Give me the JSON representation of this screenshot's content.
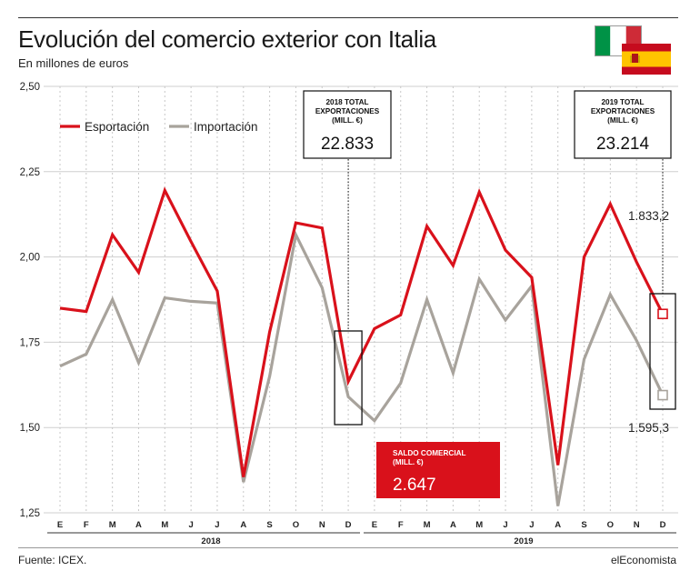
{
  "header": {
    "title": "Evolución del comercio exterior con Italia",
    "subtitle": "En millones de euros"
  },
  "footer": {
    "source": "Fuente: ICEX.",
    "brand": "elEconomista"
  },
  "colors": {
    "export": "#d9111b",
    "import": "#a8a39c",
    "flag_it_green": "#009246",
    "flag_it_red": "#ce2b37",
    "flag_es_red": "#c60b1e",
    "flag_es_yellow": "#ffc400"
  },
  "flags": [
    "italy-flag",
    "spain-flag"
  ],
  "chart_data": {
    "type": "line",
    "title": "Evolución del comercio exterior con Italia",
    "subtitle": "En millones de euros",
    "ylim": [
      1.25,
      2.5
    ],
    "yticks": [
      "2,50",
      "2,25",
      "2,00",
      "1,75",
      "1,50",
      "1,25"
    ],
    "ytick_values": [
      2.5,
      2.25,
      2.0,
      1.75,
      1.5,
      1.25
    ],
    "grid": true,
    "legend": "top-left",
    "categories": [
      "E",
      "F",
      "M",
      "A",
      "M",
      "J",
      "J",
      "A",
      "S",
      "O",
      "N",
      "D",
      "E",
      "F",
      "M",
      "A",
      "M",
      "J",
      "J",
      "A",
      "S",
      "O",
      "N",
      "D"
    ],
    "years": [
      {
        "label": "2018",
        "from": 0,
        "to": 11
      },
      {
        "label": "2019",
        "from": 12,
        "to": 23
      }
    ],
    "series": [
      {
        "name": "Esportación",
        "color": "#d9111b",
        "values": [
          1.85,
          1.84,
          2.065,
          1.955,
          2.195,
          2.045,
          1.9,
          1.355,
          1.78,
          2.1,
          2.085,
          1.635,
          1.79,
          1.83,
          2.09,
          1.975,
          2.19,
          2.02,
          1.94,
          1.39,
          2.0,
          2.155,
          1.985,
          1.833
        ]
      },
      {
        "name": "Importación",
        "color": "#a8a39c",
        "values": [
          1.68,
          1.715,
          1.875,
          1.69,
          1.88,
          1.87,
          1.865,
          1.34,
          1.65,
          2.065,
          1.91,
          1.59,
          1.52,
          1.63,
          1.875,
          1.66,
          1.935,
          1.815,
          1.915,
          1.27,
          1.7,
          1.89,
          1.755,
          1.595
        ]
      }
    ],
    "annotations": {
      "box_2018": {
        "heading": "2018 TOTAL EXPORTACIONES (MILL. €)",
        "lines": [
          "2018 TOTAL",
          "EXPORTACIONES",
          "(MILL. €)"
        ],
        "value": "22.833"
      },
      "box_2019": {
        "heading": "2019 TOTAL EXPORTACIONES (MILL. €)",
        "lines": [
          "2019 TOTAL",
          "EXPORTACIONES",
          "(MILL. €)"
        ],
        "value": "23.214"
      },
      "saldo": {
        "lines": [
          "SALDO COMERCIAL",
          "(MILL. €)"
        ],
        "value": "2.647"
      },
      "last_export_label": "1.833,2",
      "last_import_label": "1.595,3"
    }
  }
}
